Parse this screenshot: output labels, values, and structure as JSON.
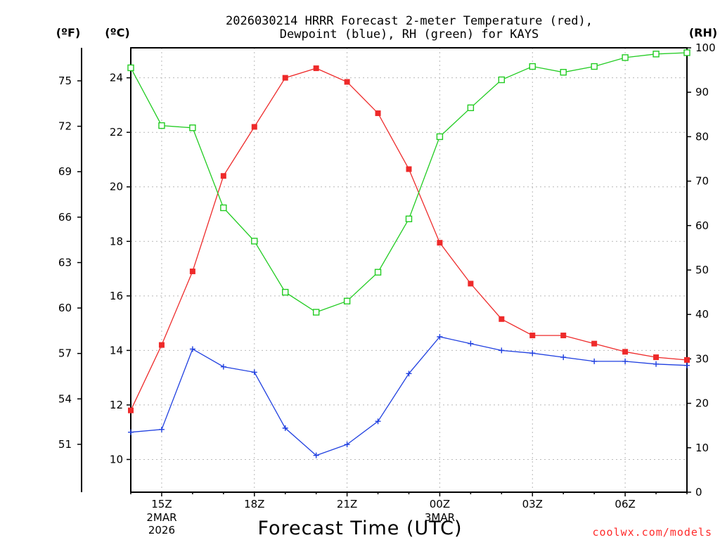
{
  "title_lines": [
    "2026030214 HRRR Forecast 2-meter Temperature (red),",
    "Dewpoint (blue), RH (green) for KAYS"
  ],
  "units": {
    "f": "(ºF)",
    "c": "(ºC)",
    "rh": "(RH)"
  },
  "credit": "coolwx.com/models",
  "colors": {
    "temperature": "#ee2a2a",
    "dewpoint": "#1f3fe0",
    "rh": "#22cc22"
  },
  "chart_data": {
    "type": "line",
    "xlabel": "Forecast Time (UTC)",
    "x": [
      "14Z",
      "15Z",
      "16Z",
      "17Z",
      "18Z",
      "19Z",
      "20Z",
      "21Z",
      "22Z",
      "23Z",
      "00Z",
      "01Z",
      "02Z",
      "03Z",
      "04Z",
      "05Z",
      "06Z",
      "07Z",
      "08Z"
    ],
    "x_ticks": [
      {
        "label": "15Z",
        "sub": [
          "2MAR",
          "2026"
        ]
      },
      {
        "label": "18Z",
        "sub": []
      },
      {
        "label": "21Z",
        "sub": []
      },
      {
        "label": "00Z",
        "sub": [
          "3MAR"
        ]
      },
      {
        "label": "03Z",
        "sub": []
      },
      {
        "label": "06Z",
        "sub": []
      }
    ],
    "x_tick_hours": [
      "15Z",
      "18Z",
      "21Z",
      "00Z",
      "03Z",
      "06Z"
    ],
    "y_left_celsius": {
      "range": [
        8.8,
        25.1
      ],
      "ticks": [
        10,
        12,
        14,
        16,
        18,
        20,
        22,
        24
      ]
    },
    "y_left_fahrenheit": {
      "ticks": [
        51,
        54,
        57,
        60,
        63,
        66,
        69,
        72,
        75
      ]
    },
    "y_right_rh": {
      "range": [
        0,
        100
      ],
      "ticks": [
        0,
        10,
        20,
        30,
        40,
        50,
        60,
        70,
        80,
        90,
        100
      ]
    },
    "grid": true,
    "series": [
      {
        "name": "Temperature",
        "axis": "celsius",
        "marker": "filled-square",
        "color": "#ee2a2a",
        "values": [
          11.8,
          14.2,
          16.9,
          20.4,
          22.2,
          24.0,
          24.35,
          23.85,
          22.7,
          20.65,
          17.95,
          16.45,
          15.15,
          14.55,
          14.55,
          14.25,
          13.95,
          13.75,
          13.65
        ]
      },
      {
        "name": "Dewpoint",
        "axis": "celsius",
        "marker": "plus",
        "color": "#1f3fe0",
        "values": [
          11.0,
          11.1,
          14.05,
          13.4,
          13.2,
          11.15,
          10.15,
          10.55,
          11.4,
          13.15,
          14.5,
          14.25,
          14.0,
          13.9,
          13.75,
          13.6,
          13.6,
          13.5,
          13.45
        ]
      },
      {
        "name": "RH",
        "axis": "rh",
        "marker": "open-square",
        "color": "#22cc22",
        "values": [
          95.5,
          82.5,
          82.0,
          64.0,
          56.5,
          45.0,
          40.5,
          43.0,
          49.5,
          61.5,
          80.0,
          86.5,
          92.8,
          95.8,
          94.5,
          95.8,
          97.8,
          98.6,
          98.9
        ]
      }
    ]
  }
}
